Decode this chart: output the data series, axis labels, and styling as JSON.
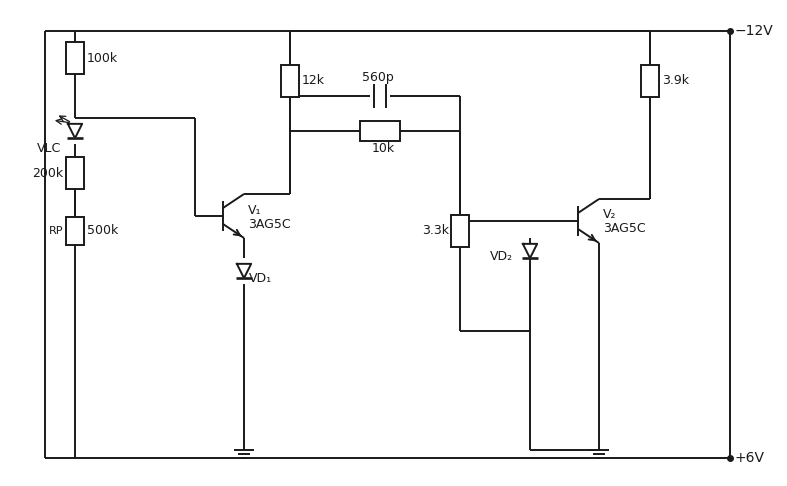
{
  "bg_color": "#ffffff",
  "line_color": "#1a1a1a",
  "line_width": 1.4,
  "fig_width": 7.87,
  "fig_height": 4.86,
  "labels": {
    "R100k": "100k",
    "VLC": "VLC",
    "R200k": "200k",
    "RP": "RP",
    "R500k": "500k",
    "R12k": "12k",
    "VD1": "VD₁",
    "V1": "V₁",
    "V1_type": "3AG5C",
    "C560p": "560p",
    "R10k": "10k",
    "R33k": "3.3k",
    "VD2": "VD₂",
    "V2": "V₂",
    "V2_type": "3AG5C",
    "R39k": "3.9k",
    "neg12V": "−12V",
    "pos6V": "+6V"
  }
}
